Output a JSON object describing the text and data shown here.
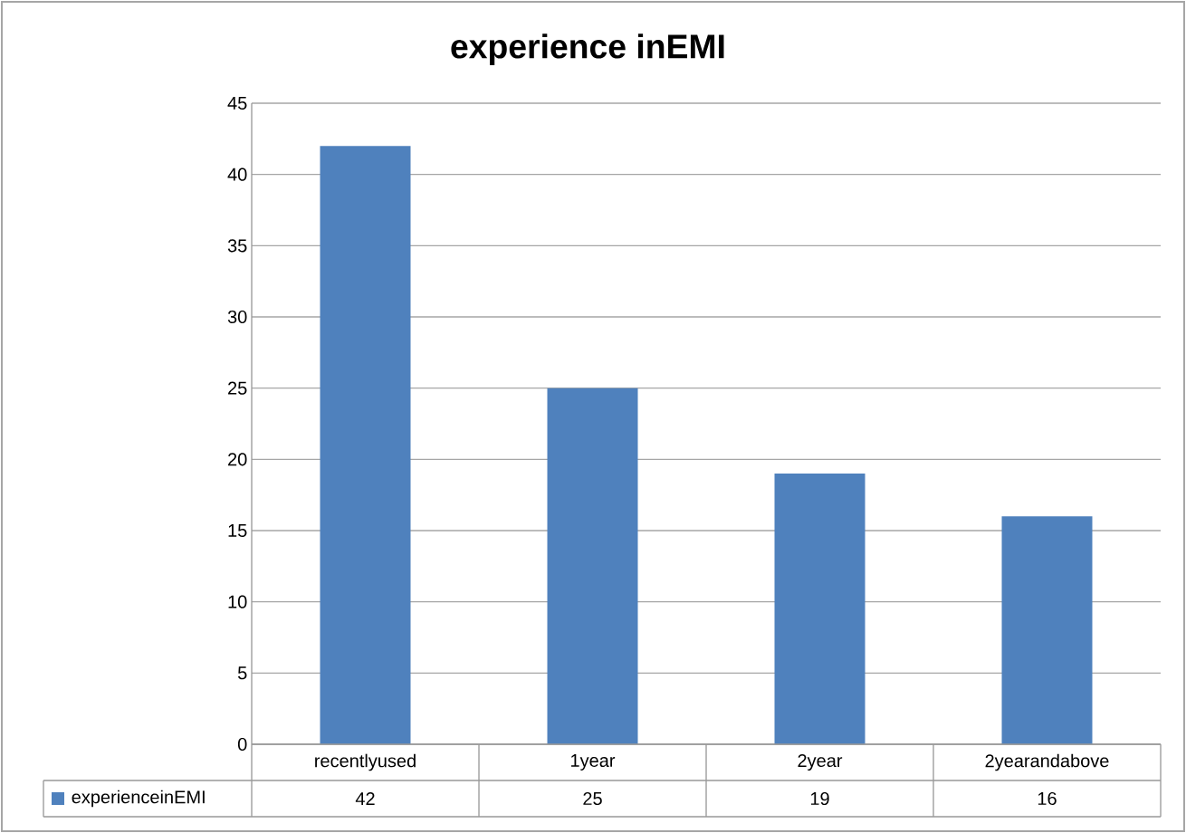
{
  "chart_data": {
    "type": "bar",
    "title": "experience inEMI",
    "categories": [
      "recentlyused",
      "1year",
      "2year",
      "2yearandabove"
    ],
    "series": [
      {
        "name": "experienceinEMI",
        "color": "#4f81bd",
        "values": [
          42,
          25,
          19,
          16
        ]
      }
    ],
    "ylim": [
      0,
      45
    ],
    "yticks": [
      0,
      5,
      10,
      15,
      20,
      25,
      30,
      35,
      40,
      45
    ],
    "grid": "y",
    "legend": "bottom",
    "data_labels": true
  }
}
